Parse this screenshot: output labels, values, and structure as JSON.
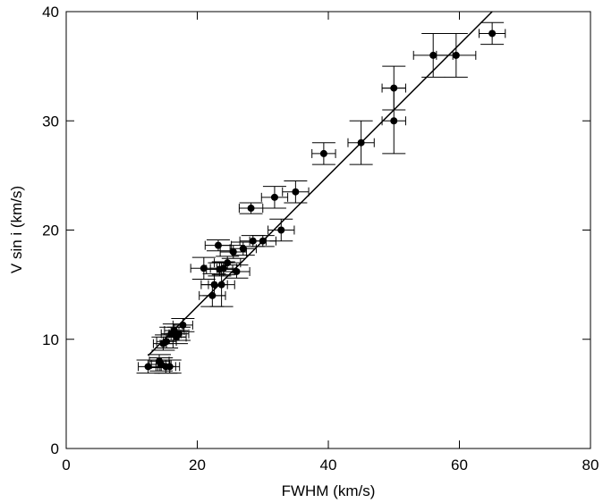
{
  "chart_data": {
    "type": "scatter",
    "title": "",
    "xlabel": "FWHM (km/s)",
    "ylabel": "V sin i (km/s)",
    "xlim": [
      0,
      80
    ],
    "ylim": [
      0,
      40
    ],
    "xticks": [
      0,
      20,
      40,
      60,
      80
    ],
    "yticks": [
      0,
      10,
      20,
      30,
      40
    ],
    "xtick_labels": [
      "0",
      "20",
      "40",
      "60",
      "80"
    ],
    "ytick_labels": [
      "0",
      "10",
      "20",
      "30",
      "40"
    ],
    "grid": false,
    "legend": "none",
    "series": [
      {
        "marker": "filled-circle",
        "color": "#000000",
        "points": [
          {
            "x": 12.5,
            "y": 7.5,
            "xerr": 1.5,
            "yerr": 0.6
          },
          {
            "x": 14.2,
            "y": 8.0,
            "xerr": 1.5,
            "yerr": 0.6
          },
          {
            "x": 14.5,
            "y": 7.7,
            "xerr": 1.5,
            "yerr": 0.6
          },
          {
            "x": 15.2,
            "y": 7.5,
            "xerr": 1.5,
            "yerr": 0.6
          },
          {
            "x": 15.8,
            "y": 7.5,
            "xerr": 1.5,
            "yerr": 0.6
          },
          {
            "x": 14.8,
            "y": 9.6,
            "xerr": 1.5,
            "yerr": 0.6
          },
          {
            "x": 15.3,
            "y": 9.8,
            "xerr": 1.5,
            "yerr": 0.6
          },
          {
            "x": 16.0,
            "y": 10.5,
            "xerr": 1.5,
            "yerr": 0.6
          },
          {
            "x": 16.5,
            "y": 10.8,
            "xerr": 1.5,
            "yerr": 0.6
          },
          {
            "x": 16.8,
            "y": 10.2,
            "xerr": 1.5,
            "yerr": 0.6
          },
          {
            "x": 17.2,
            "y": 10.5,
            "xerr": 1.5,
            "yerr": 0.6
          },
          {
            "x": 17.8,
            "y": 11.3,
            "xerr": 1.5,
            "yerr": 0.6
          },
          {
            "x": 21.0,
            "y": 16.5,
            "xerr": 2.0,
            "yerr": 1.0
          },
          {
            "x": 22.3,
            "y": 14.0,
            "xerr": 2.0,
            "yerr": 1.0
          },
          {
            "x": 22.6,
            "y": 15.0,
            "xerr": 2.0,
            "yerr": 1.0
          },
          {
            "x": 23.2,
            "y": 18.6,
            "xerr": 2.0,
            "yerr": 0.5
          },
          {
            "x": 23.4,
            "y": 16.4,
            "xerr": 2.0,
            "yerr": 0.6
          },
          {
            "x": 23.7,
            "y": 15.0,
            "xerr": 2.0,
            "yerr": 2.0
          },
          {
            "x": 24.0,
            "y": 16.5,
            "xerr": 2.0,
            "yerr": 0.6
          },
          {
            "x": 24.6,
            "y": 17.0,
            "xerr": 2.0,
            "yerr": 0.6
          },
          {
            "x": 25.5,
            "y": 18.0,
            "xerr": 2.0,
            "yerr": 0.6
          },
          {
            "x": 26.0,
            "y": 16.2,
            "xerr": 2.0,
            "yerr": 0.6
          },
          {
            "x": 27.0,
            "y": 18.3,
            "xerr": 2.0,
            "yerr": 0.6
          },
          {
            "x": 28.2,
            "y": 22.0,
            "xerr": 1.8,
            "yerr": 0.5
          },
          {
            "x": 28.5,
            "y": 19.0,
            "xerr": 2.0,
            "yerr": 0.5
          },
          {
            "x": 30.0,
            "y": 19.0,
            "xerr": 2.0,
            "yerr": 0.5
          },
          {
            "x": 31.8,
            "y": 23.0,
            "xerr": 2.0,
            "yerr": 1.0
          },
          {
            "x": 32.8,
            "y": 20.0,
            "xerr": 2.0,
            "yerr": 1.0
          },
          {
            "x": 35.0,
            "y": 23.5,
            "xerr": 2.0,
            "yerr": 1.0
          },
          {
            "x": 39.3,
            "y": 27.0,
            "xerr": 1.8,
            "yerr": 1.0
          },
          {
            "x": 45.0,
            "y": 28.0,
            "xerr": 2.0,
            "yerr": 2.0
          },
          {
            "x": 50.0,
            "y": 33.0,
            "xerr": 1.8,
            "yerr": 2.0
          },
          {
            "x": 50.0,
            "y": 30.0,
            "xerr": 1.8,
            "yerr": 3.0
          },
          {
            "x": 56.0,
            "y": 36.0,
            "xerr": 3.0,
            "yerr": 2.0
          },
          {
            "x": 59.5,
            "y": 36.0,
            "xerr": 3.0,
            "yerr": 2.0
          },
          {
            "x": 65.0,
            "y": 38.0,
            "xerr": 2.0,
            "yerr": 1.0
          }
        ]
      }
    ],
    "fit_line": {
      "x": [
        12.5,
        65.0
      ],
      "y": [
        8.5,
        40.0
      ]
    }
  }
}
